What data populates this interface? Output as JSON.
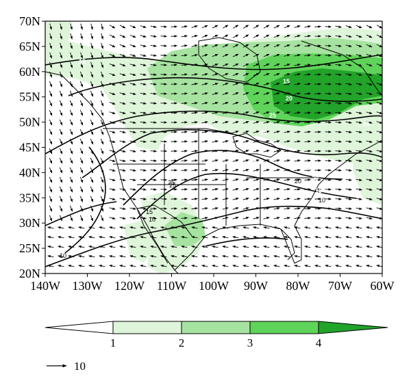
{
  "map": {
    "latitude_labels": [
      "70N",
      "65N",
      "60N",
      "55N",
      "50N",
      "45N",
      "40N",
      "35N",
      "30N",
      "25N",
      "20N"
    ],
    "longitude_labels": [
      "140W",
      "130W",
      "120W",
      "110W",
      "100W",
      "90W",
      "80W",
      "70W",
      "60W"
    ],
    "lon_range": [
      -140,
      -60
    ],
    "lat_range": [
      20,
      70
    ],
    "shading_colors": [
      "#ffffff",
      "#dff5da",
      "#a6e3a0",
      "#5fd35a",
      "#22a32a"
    ],
    "contour_labels": [
      "15",
      "15",
      "20",
      "25",
      "25",
      "30",
      "25",
      "25",
      "20",
      "25",
      "20",
      "15",
      "10",
      "15",
      "10",
      "20",
      "25",
      "10"
    ]
  },
  "colorbar": {
    "tick_labels": [
      "1",
      "2",
      "3",
      "4"
    ],
    "colors": [
      "#ffffff",
      "#dff5da",
      "#a6e3a0",
      "#5fd35a",
      "#22a32a"
    ]
  },
  "reference_vector": {
    "label": "10"
  }
}
